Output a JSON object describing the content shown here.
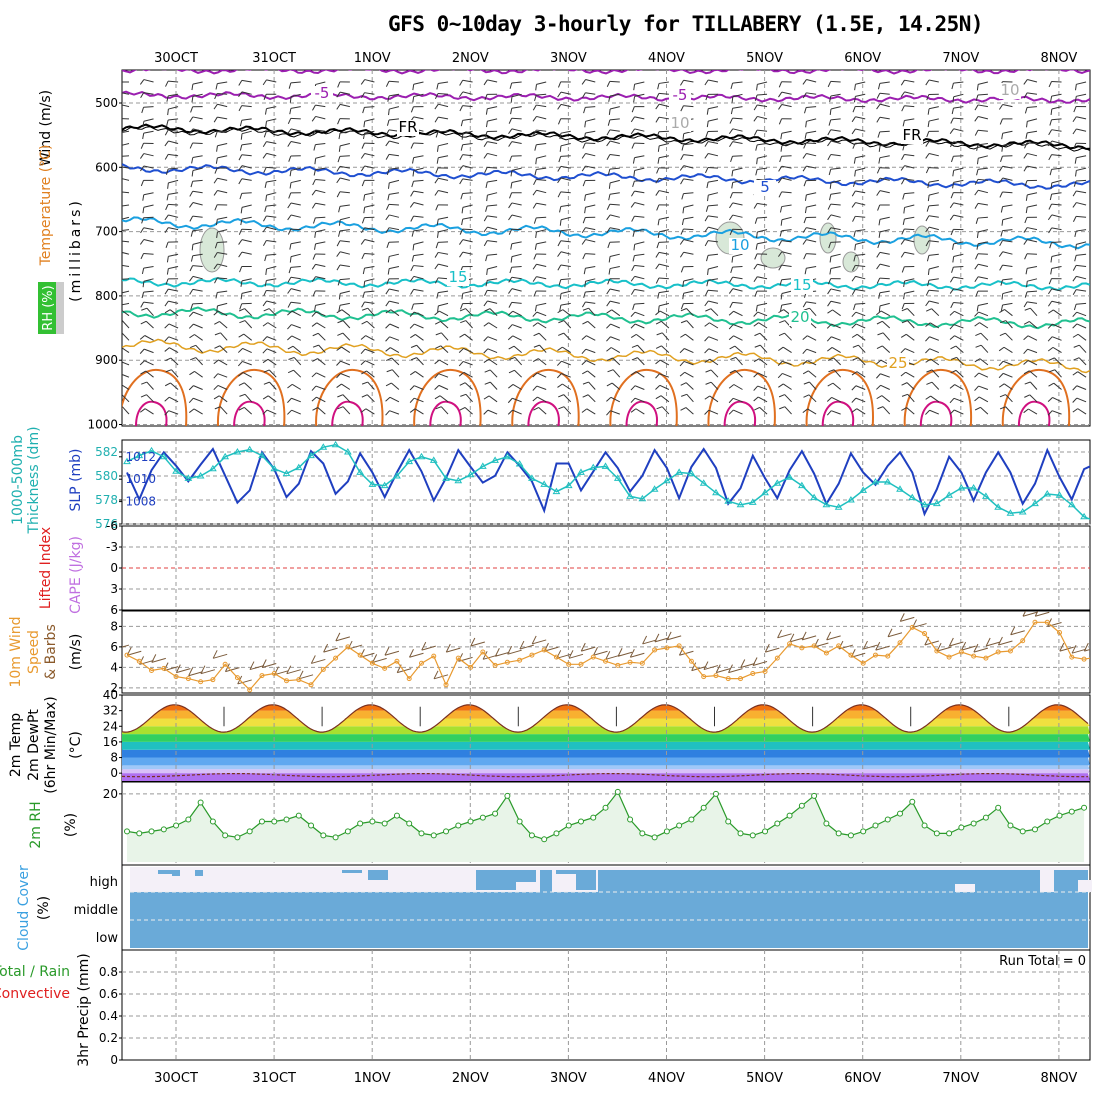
{
  "title": "GFS 0~10day 3-hourly for TILLABERY (1.5E, 14.25N)",
  "dates": [
    "30OCT",
    "31OCT",
    "1NOV",
    "2NOV",
    "3NOV",
    "4NOV",
    "5NOV",
    "6NOV",
    "7NOV",
    "8NOV"
  ],
  "panels": {
    "upper": {
      "ylabel_wind": "Wind (m/s)",
      "ylabel_temp": "Temperature (°C)",
      "ylabel_rh": "RH (%)",
      "ylabel_units": "(millibars)",
      "pressure_ticks": [
        "500",
        "600",
        "700",
        "800",
        "900",
        "1000"
      ],
      "contour_labels": [
        {
          "text": "-5",
          "color": "#9b1fb0"
        },
        {
          "text": "-5",
          "color": "#9b1fb0"
        },
        {
          "text": "FR",
          "color": "#000000"
        },
        {
          "text": "FR",
          "color": "#000000"
        },
        {
          "text": "5",
          "color": "#1f4fd0"
        },
        {
          "text": "10",
          "color": "#1aa0e0"
        },
        {
          "text": "15",
          "color": "#18c0c8"
        },
        {
          "text": "15",
          "color": "#18c0c8"
        },
        {
          "text": "20",
          "color": "#20c090"
        },
        {
          "text": "25",
          "color": "#e0a020"
        },
        {
          "text": "10",
          "color": "#aaaaaa"
        },
        {
          "text": "10",
          "color": "#aaaaaa"
        }
      ]
    },
    "thickness": {
      "ylabel_left": "1000-500mb",
      "ylabel_left2": "Thickness (dm)",
      "ylabel_right": "SLP (mb)",
      "left_ticks": [
        "576",
        "578",
        "580",
        "582"
      ],
      "right_ticks": [
        "1008",
        "1010",
        "1012"
      ]
    },
    "stability": {
      "ylabel_li": "Lifted Index",
      "ylabel_cape": "CAPE (J/kg)",
      "ticks": [
        "-6",
        "-3",
        "0",
        "3",
        "6"
      ]
    },
    "wind10": {
      "ylabel1": "10m Wind",
      "ylabel2": "Speed",
      "ylabel3": "& Barbs",
      "units": "(m/s)",
      "ticks": [
        "2",
        "4",
        "6",
        "8"
      ]
    },
    "temp2m": {
      "ylabel1": "2m Temp",
      "ylabel2": "2m DewPt",
      "ylabel3": "(6hr Min/Max)",
      "units": "(°C)",
      "ticks": [
        "0",
        "8",
        "16",
        "24",
        "32",
        "40"
      ]
    },
    "rh2m": {
      "ylabel": "2m RH",
      "units": "(%)",
      "ticks": [
        "20"
      ]
    },
    "cloud": {
      "ylabel": "Cloud Cover",
      "units": "(%)",
      "levels": [
        "high",
        "middle",
        "low"
      ]
    },
    "precip": {
      "ylabel1": "Total / Rain",
      "ylabel2": "Convective",
      "ylabel3": "3hr Precip (mm)",
      "ticks": [
        "0",
        "0.2",
        "0.4",
        "0.6",
        "0.8"
      ],
      "run_total": "Run Total = 0"
    }
  },
  "chart_data": [
    {
      "type": "line",
      "name": "thickness_slp",
      "x_unit": "3-hourly steps",
      "series": [
        {
          "name": "1000-500mb Thickness (dm)",
          "color": "#20c0c0",
          "values": [
            581.2,
            581.7,
            582.1,
            581.6,
            580.4,
            579.8,
            580.0,
            580.6,
            581.6,
            582.0,
            582.2,
            581.7,
            580.6,
            580.2,
            580.7,
            581.7,
            582.4,
            582.6,
            582.0,
            580.3,
            579.3,
            579.2,
            580.0,
            581.2,
            581.6,
            581.3,
            579.8,
            579.6,
            580.1,
            580.8,
            581.3,
            581.6,
            581.0,
            579.8,
            579.3,
            578.7,
            579.2,
            580.3,
            580.7,
            580.8,
            579.8,
            578.3,
            578.1,
            578.9,
            579.6,
            580.3,
            580.2,
            579.4,
            578.6,
            577.9,
            577.6,
            577.8,
            578.6,
            579.4,
            579.9,
            579.2,
            578.2,
            577.6,
            577.4,
            578.0,
            578.8,
            579.5,
            579.5,
            578.9,
            578.2,
            577.6,
            577.7,
            578.4,
            579.0,
            579.0,
            578.3,
            577.4,
            576.9,
            577.0,
            577.7,
            578.5,
            578.4,
            577.6,
            576.6,
            576.2,
            576.1
          ]
        },
        {
          "name": "SLP (mb)",
          "color": "#1f3fc0",
          "values": [
            1010.6,
            1008.2,
            1010.8,
            1012.4,
            1011.2,
            1009.8,
            1011.3,
            1012.7,
            1010.3,
            1007.9,
            1009.0,
            1012.4,
            1010.9,
            1008.4,
            1009.6,
            1012.5,
            1011.4,
            1008.7,
            1009.8,
            1012.3,
            1010.6,
            1008.4,
            1010.6,
            1012.6,
            1010.7,
            1008.1,
            1010.1,
            1012.6,
            1011.1,
            1009.7,
            1010.3,
            1012.4,
            1011.2,
            1009.8,
            1007.2,
            1011.4,
            1011.4,
            1009.0,
            1010.7,
            1012.4,
            1011.0,
            1008.9,
            1010.3,
            1012.6,
            1011.0,
            1008.3,
            1011.1,
            1012.7,
            1011.0,
            1007.8,
            1009.2,
            1012.1,
            1010.1,
            1008.3,
            1010.8,
            1012.5,
            1010.5,
            1007.8,
            1009.6,
            1012.3,
            1010.6,
            1009.5,
            1011.2,
            1012.4,
            1010.6,
            1006.9,
            1009.1,
            1012.0,
            1010.6,
            1008.1,
            1010.6,
            1012.4,
            1010.6,
            1007.8,
            1009.6,
            1012.6,
            1010.2,
            1008.2,
            1010.9,
            1011.4,
            1010.5,
            1011.4
          ]
        }
      ],
      "ylim_left": [
        576,
        583
      ],
      "ylim_right": [
        1006,
        1013.5
      ]
    },
    {
      "type": "line",
      "name": "wind10m",
      "series": [
        {
          "name": "10m Wind Speed (m/s)",
          "color": "#e89a30",
          "values": [
            5.2,
            4.6,
            3.7,
            3.9,
            3.1,
            2.9,
            2.6,
            2.8,
            4.3,
            3.0,
            1.8,
            3.2,
            3.4,
            2.7,
            2.8,
            2.3,
            3.8,
            4.9,
            6.0,
            5.2,
            4.4,
            3.9,
            4.6,
            2.9,
            4.4,
            5.1,
            2.3,
            4.9,
            4.0,
            5.5,
            4.2,
            4.5,
            4.7,
            5.2,
            5.7,
            5.0,
            4.3,
            4.3,
            5.0,
            4.6,
            4.2,
            4.5,
            4.4,
            5.7,
            5.9,
            6.1,
            4.6,
            3.1,
            3.2,
            2.9,
            2.9,
            3.4,
            3.6,
            4.9,
            6.3,
            5.9,
            6.1,
            5.4,
            6.1,
            5.2,
            4.4,
            5.2,
            5.1,
            6.4,
            7.9,
            7.3,
            5.6,
            5.0,
            5.5,
            5.1,
            4.9,
            5.5,
            5.6,
            6.6,
            8.4,
            8.4,
            7.4,
            5.0,
            4.8,
            5.0,
            6.3,
            8.1,
            8.4,
            7.3,
            5.2,
            4.9,
            5.4,
            5.1,
            5.8,
            6.5,
            7.2
          ]
        }
      ],
      "ylim": [
        1.5,
        9.5
      ]
    },
    {
      "type": "line",
      "name": "rh2m",
      "series": [
        {
          "name": "2m RH (%)",
          "color": "#2a9a2a",
          "values": [
            10.5,
            10.0,
            10.5,
            11.0,
            12.0,
            13.5,
            17.8,
            13.0,
            9.5,
            9.0,
            10.5,
            13.0,
            13.0,
            13.5,
            14.5,
            12.0,
            9.5,
            9.0,
            10.5,
            12.5,
            13.0,
            12.5,
            14.5,
            12.5,
            10.0,
            9.5,
            10.5,
            12.0,
            13.0,
            14.0,
            15.0,
            19.5,
            13.0,
            9.5,
            8.5,
            10.0,
            12.0,
            13.0,
            14.0,
            16.5,
            20.5,
            13.5,
            10.0,
            9.0,
            10.5,
            12.0,
            13.5,
            16.5,
            20.0,
            13.0,
            10.0,
            9.5,
            10.5,
            12.5,
            14.5,
            17.0,
            19.5,
            12.5,
            10.0,
            9.5,
            10.5,
            12.0,
            13.5,
            15.0,
            18.0,
            12.0,
            10.0,
            10.0,
            11.5,
            12.5,
            14.0,
            16.5,
            12.0,
            10.5,
            11.0,
            13.0,
            14.5,
            15.5,
            16.5
          ]
        }
      ],
      "ylim": [
        2,
        23
      ]
    },
    {
      "type": "bar",
      "name": "precip",
      "series": [
        {
          "name": "3hr Precip (mm)",
          "values": []
        }
      ],
      "ylim": [
        0,
        1.0
      ]
    }
  ]
}
